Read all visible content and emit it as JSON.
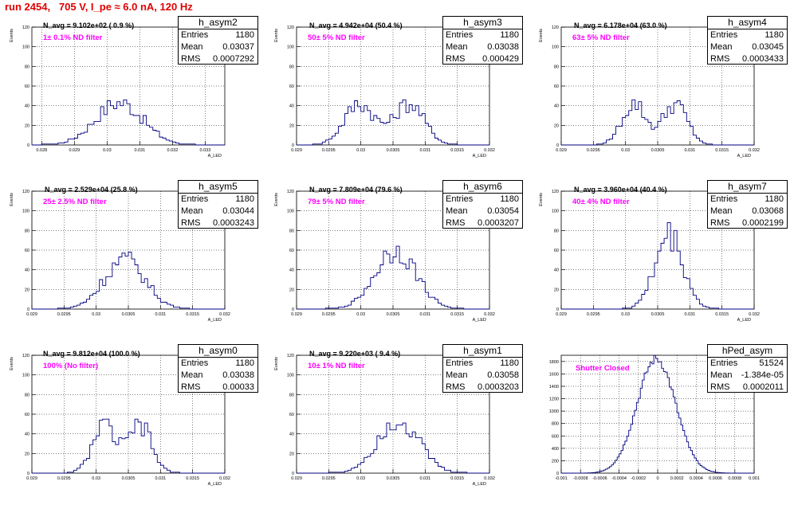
{
  "page_title": "run 2454,   705 V, I_pe ≈ 6.0 nA, 120 Hz",
  "stats_labels": {
    "entries": "Entries",
    "mean": "Mean",
    "rms": "RMS"
  },
  "chart_data": [
    {
      "type": "histogram",
      "title": "h_asym2",
      "navg": "N_avg = 9.102e+02 ( 0.9 %)",
      "filter": "1± 0.1% ND filter",
      "stats": {
        "entries": "1180",
        "mean": "0.03037",
        "rms": "0.0007292"
      },
      "xlabel": "A_LED",
      "ylabel": "Events",
      "xlim": [
        0.0277,
        0.0336
      ],
      "ylim": [
        0,
        120
      ],
      "xticks": [
        0.028,
        0.029,
        0.03,
        0.031,
        0.032,
        0.033
      ],
      "xtick_labels": [
        "0.028",
        "0.029",
        "0.03",
        "0.031",
        "0.032",
        "0.033"
      ],
      "yticks": [
        0,
        20,
        40,
        60,
        80,
        100,
        120
      ],
      "mean": 0.03037,
      "sigma": 0.00073,
      "hist_shape": "single",
      "peak_counts": 43,
      "bin_width": 0.0001,
      "fill": false,
      "color": "#000080"
    },
    {
      "type": "histogram",
      "title": "h_asym3",
      "navg": "N_avg = 4.942e+04 (50.4 %)",
      "filter": "50± 5% ND filter",
      "stats": {
        "entries": "1180",
        "mean": "0.03038",
        "rms": "0.000429"
      },
      "xlabel": "A_LED",
      "ylabel": "Events",
      "xlim": [
        0.029,
        0.032
      ],
      "ylim": [
        0,
        120
      ],
      "xticks": [
        0.029,
        0.0295,
        0.03,
        0.0305,
        0.031,
        0.0315,
        0.032
      ],
      "xtick_labels": [
        "0.029",
        "0.0295",
        "0.03",
        "0.0305",
        "0.031",
        "0.0315",
        "0.032"
      ],
      "yticks": [
        0,
        20,
        40,
        60,
        80,
        100,
        120
      ],
      "mean": 0.03038,
      "sigma": 0.00043,
      "hist_shape": "double",
      "peaks": [
        0.02998,
        0.03075
      ],
      "peak_counts": 42,
      "bin_width": 5e-05,
      "fill": false,
      "color": "#000080"
    },
    {
      "type": "histogram",
      "title": "h_asym4",
      "navg": "N_avg = 6.178e+04 (63.0 %)",
      "filter": "63± 5% ND filter",
      "stats": {
        "entries": "1180",
        "mean": "0.03045",
        "rms": "0.0003433"
      },
      "xlabel": "A_LED",
      "ylabel": "Events",
      "xlim": [
        0.029,
        0.032
      ],
      "ylim": [
        0,
        120
      ],
      "xticks": [
        0.029,
        0.0295,
        0.03,
        0.0305,
        0.031,
        0.0315,
        0.032
      ],
      "xtick_labels": [
        "0.029",
        "0.0295",
        "0.03",
        "0.0305",
        "0.031",
        "0.0315",
        "0.032"
      ],
      "yticks": [
        0,
        20,
        40,
        60,
        80,
        100,
        120
      ],
      "mean": 0.03045,
      "sigma": 0.00034,
      "hist_shape": "double",
      "peaks": [
        0.03013,
        0.03077
      ],
      "peak_counts": 42,
      "bin_width": 5e-05,
      "fill": false,
      "color": "#000080"
    },
    {
      "type": "histogram",
      "title": "h_asym5",
      "navg": "N_avg = 2.529e+04 (25.8 %)",
      "filter": "25± 2.5% ND filter",
      "stats": {
        "entries": "1180",
        "mean": "0.03044",
        "rms": "0.0003243"
      },
      "xlabel": "A_LED",
      "ylabel": "Events",
      "xlim": [
        0.029,
        0.032
      ],
      "ylim": [
        0,
        120
      ],
      "xticks": [
        0.029,
        0.0295,
        0.03,
        0.0305,
        0.031,
        0.0315,
        0.032
      ],
      "xtick_labels": [
        "0.029",
        "0.0295",
        "0.03",
        "0.0305",
        "0.031",
        "0.0315",
        "0.032"
      ],
      "yticks": [
        0,
        20,
        40,
        60,
        80,
        100,
        120
      ],
      "mean": 0.03044,
      "sigma": 0.00032,
      "hist_shape": "single",
      "peak_counts": 50,
      "bin_width": 5e-05,
      "fill": false,
      "color": "#000080"
    },
    {
      "type": "histogram",
      "title": "h_asym6",
      "navg": "N_avg = 7.809e+04 (79.6 %)",
      "filter": "79± 5% ND filter",
      "stats": {
        "entries": "1180",
        "mean": "0.03054",
        "rms": "0.0003207"
      },
      "xlabel": "A_LED",
      "ylabel": "Events",
      "xlim": [
        0.029,
        0.032
      ],
      "ylim": [
        0,
        120
      ],
      "xticks": [
        0.029,
        0.0295,
        0.03,
        0.0305,
        0.031,
        0.0315,
        0.032
      ],
      "xtick_labels": [
        "0.029",
        "0.0295",
        "0.03",
        "0.0305",
        "0.031",
        "0.0315",
        "0.032"
      ],
      "yticks": [
        0,
        20,
        40,
        60,
        80,
        100,
        120
      ],
      "mean": 0.03054,
      "sigma": 0.00032,
      "hist_shape": "single",
      "peak_counts": 60,
      "bin_width": 5e-05,
      "fill": false,
      "color": "#000080"
    },
    {
      "type": "histogram",
      "title": "h_asym7",
      "navg": "N_avg = 3.960e+04 (40.4 %)",
      "filter": "40± 4% ND filter",
      "stats": {
        "entries": "1180",
        "mean": "0.03068",
        "rms": "0.0002199"
      },
      "xlabel": "A_LED",
      "ylabel": "Events",
      "xlim": [
        0.029,
        0.032
      ],
      "ylim": [
        0,
        120
      ],
      "xticks": [
        0.029,
        0.0295,
        0.03,
        0.0305,
        0.031,
        0.0315,
        0.032
      ],
      "xtick_labels": [
        "0.029",
        "0.0295",
        "0.03",
        "0.0305",
        "0.031",
        "0.0315",
        "0.032"
      ],
      "yticks": [
        0,
        20,
        40,
        60,
        80,
        100,
        120
      ],
      "mean": 0.03068,
      "sigma": 0.00022,
      "hist_shape": "single",
      "peak_counts": 75,
      "bin_width": 5e-05,
      "fill": false,
      "color": "#000080"
    },
    {
      "type": "histogram",
      "title": "h_asym0",
      "navg": "N_avg = 9.812e+04 (100.0 %)",
      "filter": "100% (No filter)",
      "stats": {
        "entries": "1180",
        "mean": "0.03038",
        "rms": "0.00033"
      },
      "xlabel": "A_LED",
      "ylabel": "Events",
      "xlim": [
        0.029,
        0.032
      ],
      "ylim": [
        0,
        120
      ],
      "xticks": [
        0.029,
        0.0295,
        0.03,
        0.0305,
        0.031,
        0.0315,
        0.032
      ],
      "xtick_labels": [
        "0.029",
        "0.0295",
        "0.03",
        "0.0305",
        "0.031",
        "0.0315",
        "0.032"
      ],
      "yticks": [
        0,
        20,
        40,
        60,
        80,
        100,
        120
      ],
      "mean": 0.03038,
      "sigma": 0.00033,
      "hist_shape": "double",
      "peaks": [
        0.03012,
        0.03068
      ],
      "peak_counts": 48,
      "bin_width": 5e-05,
      "fill": false,
      "color": "#000080"
    },
    {
      "type": "histogram",
      "title": "h_asym1",
      "navg": "N_avg = 9.220e+03 ( 9.4 %)",
      "filter": "10± 1% ND filter",
      "stats": {
        "entries": "1180",
        "mean": "0.03058",
        "rms": "0.0003203"
      },
      "xlabel": "A_LED",
      "ylabel": "Events",
      "xlim": [
        0.029,
        0.032
      ],
      "ylim": [
        0,
        120
      ],
      "xticks": [
        0.029,
        0.0295,
        0.03,
        0.0305,
        0.031,
        0.0315,
        0.032
      ],
      "xtick_labels": [
        "0.029",
        "0.0295",
        "0.03",
        "0.0305",
        "0.031",
        "0.0315",
        "0.032"
      ],
      "yticks": [
        0,
        20,
        40,
        60,
        80,
        100,
        120
      ],
      "mean": 0.03058,
      "sigma": 0.00032,
      "hist_shape": "single",
      "peak_counts": 55,
      "bin_width": 5e-05,
      "fill": false,
      "color": "#000080"
    },
    {
      "type": "histogram",
      "title": "hPed_asym",
      "navg": "",
      "filter": "Shutter Closed",
      "stats": {
        "entries": "51524",
        "mean": "-1.384e-05",
        "rms": "0.0002011"
      },
      "xlabel": "",
      "ylabel": "",
      "xlim": [
        -0.001,
        0.001
      ],
      "ylim": [
        0,
        1900
      ],
      "xticks": [
        -0.001,
        -0.0008,
        -0.0006,
        -0.0004,
        -0.0002,
        0,
        0.0002,
        0.0004,
        0.0006,
        0.0008,
        0.001
      ],
      "xtick_labels": [
        "-0.001",
        "-0.0008",
        "-0.0006",
        "-0.0004",
        "-0.0002",
        "0",
        "0.0002",
        "0.0004",
        "0.0006",
        "0.0008",
        "0.001"
      ],
      "yticks": [
        0,
        200,
        400,
        600,
        800,
        1000,
        1200,
        1400,
        1600,
        1800
      ],
      "mean": -1.384e-05,
      "sigma": 0.0002,
      "hist_shape": "single",
      "peak_counts": 1840,
      "bin_width": 2e-05,
      "fill": false,
      "color": "#000080"
    }
  ]
}
